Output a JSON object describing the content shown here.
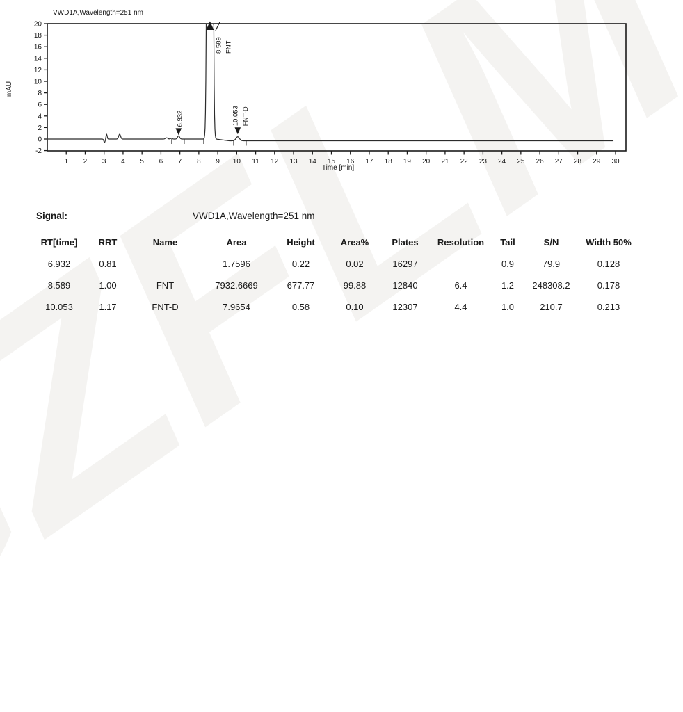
{
  "watermark": {
    "text": "GZFLM"
  },
  "signal_section": {
    "label": "Signal:",
    "value": "VWD1A,Wavelength=251 nm"
  },
  "table": {
    "columns": [
      "RT[time]",
      "RRT",
      "Name",
      "Area",
      "Height",
      "Area%",
      "Plates",
      "Resolution",
      "Tail",
      "S/N",
      "Width 50%"
    ],
    "rows": [
      [
        "6.932",
        "0.81",
        "",
        "1.7596",
        "0.22",
        "0.02",
        "16297",
        "",
        "0.9",
        "79.9",
        "0.128"
      ],
      [
        "8.589",
        "1.00",
        "FNT",
        "7932.6669",
        "677.77",
        "99.88",
        "12840",
        "6.4",
        "1.2",
        "248308.2",
        "0.178"
      ],
      [
        "10.053",
        "1.17",
        "FNT-D",
        "7.9654",
        "0.58",
        "0.10",
        "12307",
        "4.4",
        "1.0",
        "210.7",
        "0.213"
      ]
    ]
  },
  "chart_data": {
    "type": "line",
    "title": "VWD1A,Wavelength=251 nm",
    "xlabel": "Time [min]",
    "ylabel": "mAU",
    "xlim": [
      0,
      30.55
    ],
    "ylim": [
      -2,
      20
    ],
    "x_ticks": {
      "start": 1,
      "end": 30,
      "step": 1
    },
    "y_ticks": {
      "start": -2,
      "end": 20,
      "step": 2
    },
    "grid": false,
    "peaks": [
      {
        "rt": 6.932,
        "rt_label": "6.932",
        "name": "",
        "height_mAU": 0.22,
        "display_height_mAU": 0.55,
        "width50_min": 0.128,
        "marker": "down-arrow",
        "clipped": false
      },
      {
        "rt": 8.589,
        "rt_label": "8.589",
        "name": "FNT",
        "height_mAU": 677.77,
        "display_height_mAU": 677.77,
        "width50_min": 0.178,
        "marker": "up-arrow",
        "clipped": true
      },
      {
        "rt": 10.053,
        "rt_label": "10.053",
        "name": "FNT-D",
        "height_mAU": 0.58,
        "display_height_mAU": 0.7,
        "width50_min": 0.213,
        "marker": "down-arrow",
        "clipped": false
      }
    ],
    "baseline_artifacts": [
      {
        "t": 3.02,
        "h": -0.6,
        "w": 0.035
      },
      {
        "t": 3.13,
        "h": 0.85,
        "w": 0.03
      },
      {
        "t": 3.82,
        "h": 0.85,
        "w": 0.05
      },
      {
        "t": 6.3,
        "h": 0.22,
        "w": 0.06
      },
      {
        "t": 6.55,
        "h": 0.12,
        "w": 0.05
      }
    ],
    "integration_tick_times": [
      6.57,
      7.23,
      8.26,
      9.84,
      10.5
    ],
    "baseline_shift_after_peak_mAU": -0.3,
    "trace_end_min": 29.9,
    "colors": {
      "trace": "#2b2b2b",
      "axis": "#1a1a1a",
      "text": "#161616"
    }
  }
}
